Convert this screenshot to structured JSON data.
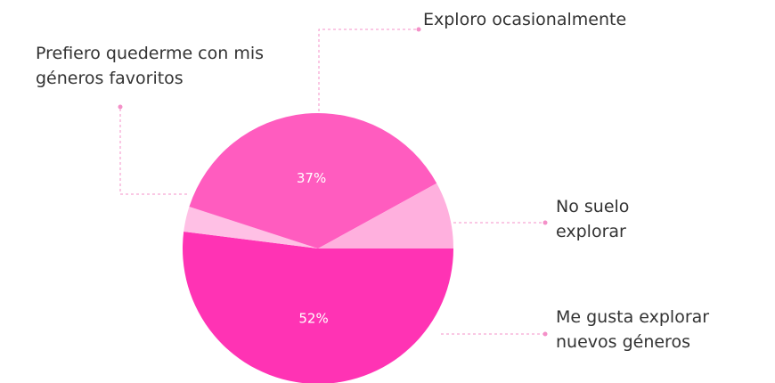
{
  "chart_data": {
    "type": "pie",
    "categories": [
      "Me gusta explorar nuevos géneros",
      "Prefiero quederme con mis géneros favoritos",
      "Exploro ocasionalmente",
      "No suelo explorar"
    ],
    "values": [
      52,
      3,
      37,
      8
    ],
    "value_labels": [
      "52%",
      null,
      "37%",
      null
    ],
    "colors": [
      "#ff33b4",
      "#ffc0e5",
      "#ff5cbf",
      "#ffb0de"
    ]
  }
}
